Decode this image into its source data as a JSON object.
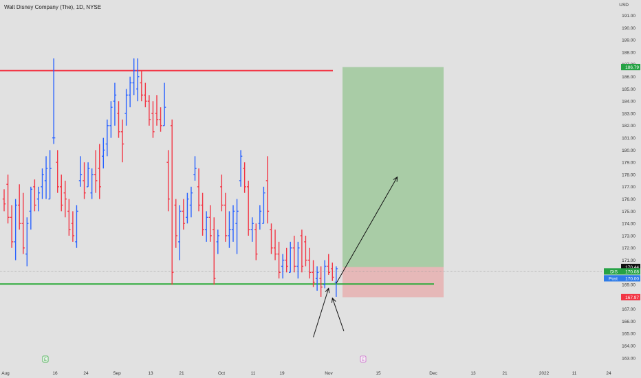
{
  "header": {
    "symbol_title": "Walt Disney Company (The), 1D, NYSE"
  },
  "colors": {
    "background": "#e1e1e1",
    "up_bar": "#2962ff",
    "down_bar": "#f23645",
    "resistance_line": "#f23645",
    "support_line": "#2eaa3a",
    "target_zone": "#a9cca6",
    "stop_zone": "#e6b8b8",
    "price_tag_green": "#26a245",
    "price_tag_red": "#f23645",
    "price_tag_black": "#111111",
    "price_tag_post": "#2e7be8"
  },
  "price_axis": {
    "currency": "USD",
    "ticks": [
      "163.00",
      "164.00",
      "165.00",
      "166.00",
      "167.00",
      "168.00",
      "169.00",
      "170.00",
      "171.00",
      "172.00",
      "173.00",
      "174.00",
      "175.00",
      "176.00",
      "177.00",
      "178.00",
      "179.00",
      "180.00",
      "181.00",
      "182.00",
      "183.00",
      "184.00",
      "185.00",
      "186.00",
      "187.00",
      "188.00",
      "189.00",
      "190.00",
      "191.00"
    ],
    "range": [
      162.6,
      191.6
    ]
  },
  "price_tags": [
    {
      "label": "",
      "value": "186.79",
      "price": 186.79,
      "color": "#26a245"
    },
    {
      "label": "",
      "value": "170.44",
      "price": 170.44,
      "color": "#111111"
    },
    {
      "label": "DIS",
      "value": "170.08",
      "price": 170.08,
      "color": "#26a245"
    },
    {
      "label": "Post",
      "value": "170.00",
      "price": 170.0,
      "color": "#2e7be8"
    },
    {
      "label": "",
      "value": "167.97",
      "price": 167.97,
      "color": "#f23645"
    }
  ],
  "time_axis": {
    "labels": [
      "Aug",
      "16",
      "24",
      "Sep",
      "13",
      "21",
      "Oct",
      "11",
      "19",
      "Nov",
      "15",
      "Dec",
      "13",
      "21",
      "2022",
      "11",
      "24"
    ],
    "earnings_marks": [
      "E",
      "E"
    ]
  },
  "chart_data": {
    "type": "ohlc",
    "title": "Walt Disney Company (The), 1D, NYSE",
    "ylabel": "USD",
    "ylim": [
      162.6,
      191.6
    ],
    "grid": false,
    "horizontal_lines": [
      {
        "name": "resistance",
        "price": 186.5
      },
      {
        "name": "support",
        "price": 169.05
      }
    ],
    "position_tool": {
      "entry": 170.44,
      "target": 186.79,
      "stop": 167.97
    },
    "last_price": 170.08,
    "post_market_price": 170.0,
    "bars": [
      {
        "o": 176.0,
        "h": 176.8,
        "l": 175.0,
        "c": 175.6
      },
      {
        "o": 177.2,
        "h": 178.0,
        "l": 174.0,
        "c": 174.5
      },
      {
        "o": 174.5,
        "h": 175.5,
        "l": 172.0,
        "c": 172.5
      },
      {
        "o": 172.5,
        "h": 176.0,
        "l": 171.0,
        "c": 175.5
      },
      {
        "o": 175.5,
        "h": 177.2,
        "l": 173.5,
        "c": 174.0
      },
      {
        "o": 174.0,
        "h": 176.5,
        "l": 171.5,
        "c": 172.0
      },
      {
        "o": 171.5,
        "h": 174.5,
        "l": 170.5,
        "c": 174.0
      },
      {
        "o": 175.0,
        "h": 177.0,
        "l": 173.5,
        "c": 176.8
      },
      {
        "o": 177.0,
        "h": 177.6,
        "l": 175.0,
        "c": 175.5
      },
      {
        "o": 176.0,
        "h": 177.0,
        "l": 175.0,
        "c": 176.5
      },
      {
        "o": 177.0,
        "h": 178.5,
        "l": 176.0,
        "c": 178.0
      },
      {
        "o": 177.5,
        "h": 179.5,
        "l": 176.0,
        "c": 178.5
      },
      {
        "o": 176.0,
        "h": 180.0,
        "l": 176.0,
        "c": 178.5
      },
      {
        "o": 181.0,
        "h": 187.5,
        "l": 180.5,
        "c": 181.0
      },
      {
        "o": 179.0,
        "h": 180.0,
        "l": 176.5,
        "c": 177.0
      },
      {
        "o": 177.0,
        "h": 178.0,
        "l": 175.0,
        "c": 175.5
      },
      {
        "o": 176.5,
        "h": 177.5,
        "l": 174.5,
        "c": 176.0
      },
      {
        "o": 175.0,
        "h": 176.0,
        "l": 173.0,
        "c": 173.5
      },
      {
        "o": 174.0,
        "h": 175.0,
        "l": 172.5,
        "c": 173.0
      },
      {
        "o": 172.5,
        "h": 175.5,
        "l": 172.0,
        "c": 175.0
      },
      {
        "o": 177.5,
        "h": 179.5,
        "l": 177.0,
        "c": 178.0
      },
      {
        "o": 177.5,
        "h": 179.0,
        "l": 176.0,
        "c": 176.5
      },
      {
        "o": 177.0,
        "h": 179.0,
        "l": 177.0,
        "c": 178.5
      },
      {
        "o": 176.5,
        "h": 178.5,
        "l": 176.0,
        "c": 178.0
      },
      {
        "o": 178.0,
        "h": 180.0,
        "l": 176.5,
        "c": 177.5
      },
      {
        "o": 178.5,
        "h": 180.5,
        "l": 176.0,
        "c": 177.0
      },
      {
        "o": 179.5,
        "h": 181.0,
        "l": 178.5,
        "c": 180.0
      },
      {
        "o": 180.5,
        "h": 182.5,
        "l": 179.5,
        "c": 182.0
      },
      {
        "o": 182.0,
        "h": 184.0,
        "l": 181.0,
        "c": 183.5
      },
      {
        "o": 184.0,
        "h": 185.5,
        "l": 182.0,
        "c": 184.5
      },
      {
        "o": 183.0,
        "h": 184.0,
        "l": 181.0,
        "c": 181.5
      },
      {
        "o": 181.5,
        "h": 182.5,
        "l": 179.0,
        "c": 180.5
      },
      {
        "o": 183.0,
        "h": 185.0,
        "l": 182.0,
        "c": 184.5
      },
      {
        "o": 184.5,
        "h": 186.0,
        "l": 183.5,
        "c": 185.5
      },
      {
        "o": 185.5,
        "h": 187.5,
        "l": 184.5,
        "c": 186.5
      },
      {
        "o": 185.0,
        "h": 187.5,
        "l": 184.0,
        "c": 186.0
      },
      {
        "o": 185.5,
        "h": 186.5,
        "l": 184.0,
        "c": 184.5
      },
      {
        "o": 184.5,
        "h": 185.5,
        "l": 183.5,
        "c": 184.0
      },
      {
        "o": 184.0,
        "h": 184.5,
        "l": 182.0,
        "c": 182.5
      },
      {
        "o": 183.0,
        "h": 184.0,
        "l": 181.0,
        "c": 181.5
      },
      {
        "o": 183.0,
        "h": 184.5,
        "l": 182.0,
        "c": 182.5
      },
      {
        "o": 182.5,
        "h": 183.5,
        "l": 181.5,
        "c": 182.0
      },
      {
        "o": 182.0,
        "h": 185.5,
        "l": 182.0,
        "c": 183.5
      },
      {
        "o": 179.0,
        "h": 180.0,
        "l": 175.0,
        "c": 176.0
      },
      {
        "o": 182.0,
        "h": 182.5,
        "l": 169.0,
        "c": 170.0
      },
      {
        "o": 175.5,
        "h": 176.0,
        "l": 172.0,
        "c": 173.0
      },
      {
        "o": 172.5,
        "h": 175.5,
        "l": 171.0,
        "c": 175.0
      },
      {
        "o": 175.0,
        "h": 176.0,
        "l": 173.5,
        "c": 174.0
      },
      {
        "o": 174.5,
        "h": 176.5,
        "l": 174.0,
        "c": 176.0
      },
      {
        "o": 175.5,
        "h": 177.0,
        "l": 174.5,
        "c": 176.5
      },
      {
        "o": 178.0,
        "h": 179.5,
        "l": 177.5,
        "c": 178.5
      },
      {
        "o": 177.0,
        "h": 178.5,
        "l": 175.0,
        "c": 175.5
      },
      {
        "o": 175.5,
        "h": 176.5,
        "l": 173.0,
        "c": 173.5
      },
      {
        "o": 173.5,
        "h": 175.0,
        "l": 172.5,
        "c": 174.5
      },
      {
        "o": 174.5,
        "h": 175.5,
        "l": 172.5,
        "c": 173.0
      },
      {
        "o": 173.5,
        "h": 174.5,
        "l": 169.0,
        "c": 169.5
      },
      {
        "o": 172.5,
        "h": 173.5,
        "l": 171.5,
        "c": 173.0
      },
      {
        "o": 177.0,
        "h": 178.0,
        "l": 175.0,
        "c": 175.5
      },
      {
        "o": 175.5,
        "h": 176.5,
        "l": 172.5,
        "c": 173.0
      },
      {
        "o": 173.0,
        "h": 175.0,
        "l": 172.0,
        "c": 173.5
      },
      {
        "o": 173.5,
        "h": 175.5,
        "l": 172.5,
        "c": 175.0
      },
      {
        "o": 174.0,
        "h": 176.0,
        "l": 171.5,
        "c": 175.0
      },
      {
        "o": 177.5,
        "h": 180.0,
        "l": 177.0,
        "c": 179.5
      },
      {
        "o": 178.5,
        "h": 179.0,
        "l": 176.5,
        "c": 177.0
      },
      {
        "o": 177.0,
        "h": 177.5,
        "l": 173.0,
        "c": 173.5
      },
      {
        "o": 173.5,
        "h": 174.5,
        "l": 172.5,
        "c": 174.0
      },
      {
        "o": 173.5,
        "h": 174.0,
        "l": 171.0,
        "c": 171.5
      },
      {
        "o": 174.0,
        "h": 175.5,
        "l": 173.5,
        "c": 175.0
      },
      {
        "o": 174.0,
        "h": 177.0,
        "l": 174.0,
        "c": 176.5
      },
      {
        "o": 177.5,
        "h": 179.5,
        "l": 174.0,
        "c": 175.0
      },
      {
        "o": 173.5,
        "h": 174.0,
        "l": 171.5,
        "c": 172.0
      },
      {
        "o": 172.0,
        "h": 173.5,
        "l": 171.0,
        "c": 171.5
      },
      {
        "o": 171.5,
        "h": 172.5,
        "l": 169.5,
        "c": 170.0
      },
      {
        "o": 170.5,
        "h": 171.5,
        "l": 169.5,
        "c": 171.0
      },
      {
        "o": 171.0,
        "h": 172.0,
        "l": 170.0,
        "c": 170.5
      },
      {
        "o": 170.0,
        "h": 172.5,
        "l": 170.0,
        "c": 172.0
      },
      {
        "o": 172.0,
        "h": 173.0,
        "l": 170.0,
        "c": 170.5
      },
      {
        "o": 170.5,
        "h": 172.5,
        "l": 169.5,
        "c": 172.0
      },
      {
        "o": 173.0,
        "h": 173.5,
        "l": 170.0,
        "c": 170.5
      },
      {
        "o": 172.5,
        "h": 173.0,
        "l": 170.5,
        "c": 171.0
      },
      {
        "o": 171.0,
        "h": 172.0,
        "l": 169.5,
        "c": 170.0
      },
      {
        "o": 170.0,
        "h": 171.0,
        "l": 168.8,
        "c": 169.2
      },
      {
        "o": 169.5,
        "h": 170.5,
        "l": 168.5,
        "c": 170.0
      },
      {
        "o": 169.5,
        "h": 170.5,
        "l": 168.0,
        "c": 168.8
      },
      {
        "o": 169.0,
        "h": 171.0,
        "l": 168.7,
        "c": 170.5
      },
      {
        "o": 170.5,
        "h": 171.5,
        "l": 169.8,
        "c": 170.0
      },
      {
        "o": 170.3,
        "h": 170.8,
        "l": 169.3,
        "c": 169.6
      },
      {
        "o": 169.2,
        "h": 170.5,
        "l": 168.0,
        "c": 170.3
      }
    ]
  },
  "annotations": {
    "arrows": [
      {
        "name": "trajectory-arrow",
        "from_bar": 87,
        "from_price": 169.1,
        "to_bar": 103,
        "to_price": 177.8
      },
      {
        "name": "pointer-arrow-1",
        "from_bar": 81,
        "from_price": 164.7,
        "to_bar": 85,
        "to_price": 168.7
      },
      {
        "name": "pointer-arrow-2",
        "from_bar": 89,
        "from_price": 165.2,
        "to_bar": 86,
        "to_price": 167.9
      }
    ]
  }
}
